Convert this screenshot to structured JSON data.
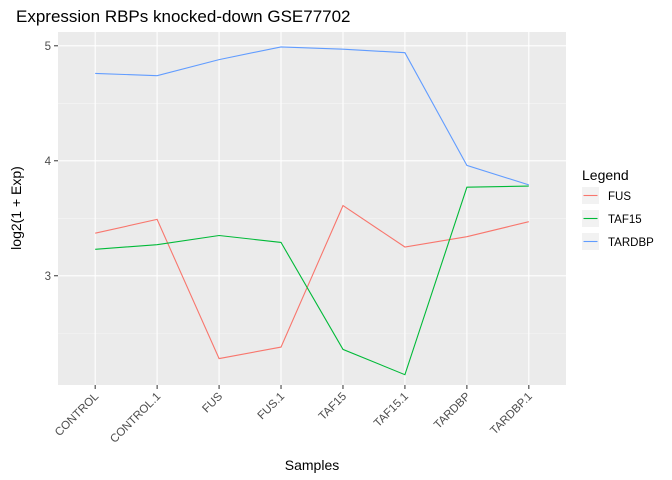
{
  "chart_data": {
    "type": "line",
    "title": "Expression RBPs knocked-down GSE77702",
    "xlabel": "Samples",
    "ylabel": "log2(1 + Exp)",
    "categories": [
      "CONTROL",
      "CONTROL.1",
      "FUS",
      "FUS.1",
      "TAF15",
      "TAF15.1",
      "TARDBP",
      "TARDBP.1"
    ],
    "yticks": [
      "3",
      "4",
      "5"
    ],
    "ylim": [
      2.05,
      5.12
    ],
    "grid": true,
    "legend": {
      "title": "Legend",
      "position": "right"
    },
    "series": [
      {
        "name": "FUS",
        "color": "#F8766D",
        "values": [
          3.37,
          3.49,
          2.28,
          2.38,
          3.61,
          3.25,
          3.34,
          3.47
        ]
      },
      {
        "name": "TAF15",
        "color": "#00BA38",
        "values": [
          3.23,
          3.27,
          3.35,
          3.29,
          2.36,
          2.14,
          3.77,
          3.78
        ]
      },
      {
        "name": "TARDBP",
        "color": "#619CFF",
        "values": [
          4.76,
          4.74,
          4.88,
          4.99,
          4.97,
          4.94,
          3.96,
          3.79
        ]
      }
    ]
  }
}
